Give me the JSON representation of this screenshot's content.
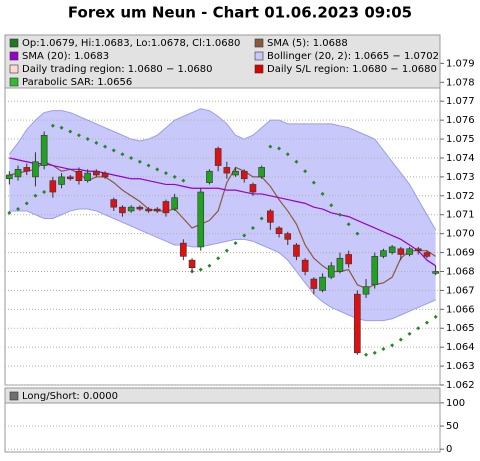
{
  "chart_data": [
    {
      "type": "candlestick",
      "title": "Forex um Neun - Chart 01.06.2023 09:05",
      "ylim": [
        1.062,
        1.0805
      ],
      "yticks": [
        1.062,
        1.063,
        1.064,
        1.065,
        1.066,
        1.067,
        1.068,
        1.069,
        {
          "value": 1.07,
          "label": "1.070"
        },
        1.071,
        1.072,
        1.073,
        1.074,
        1.075,
        1.076,
        1.077,
        1.078,
        1.079
      ],
      "grid": true,
      "series": [
        {
          "name": "Op:1.0679, Hi:1.0683, Lo:1.0678, Cl:1.0680",
          "color": "#227722",
          "up_color": "#22a022",
          "down_color": "#dd1111",
          "open": [
            1.0729,
            1.073,
            1.0735,
            1.073,
            1.0736,
            1.0728,
            1.0726,
            1.073,
            1.0733,
            1.0728,
            1.0733,
            1.0732,
            1.0718,
            1.0714,
            1.0712,
            1.0714,
            1.0713,
            1.0713,
            1.0717,
            1.0713,
            1.0695,
            1.0686,
            1.0693,
            1.0727,
            1.0745,
            1.0735,
            1.0731,
            1.0733,
            1.0726,
            1.073,
            1.0712,
            1.0703,
            1.07,
            1.0694,
            1.0686,
            1.0676,
            1.067,
            1.0677,
            1.068,
            1.0689,
            1.0668,
            1.0668,
            1.0673,
            1.0688,
            1.069,
            1.0692,
            1.0689,
            1.0692,
            1.069,
            1.0679
          ],
          "high": [
            1.0733,
            1.0736,
            1.0737,
            1.0743,
            1.0754,
            1.073,
            1.0732,
            1.0731,
            1.0735,
            1.0734,
            1.0734,
            1.0733,
            1.0719,
            1.0715,
            1.0715,
            1.0715,
            1.0714,
            1.0714,
            1.0718,
            1.0721,
            1.0697,
            1.0687,
            1.0724,
            1.0734,
            1.0746,
            1.0738,
            1.0735,
            1.0734,
            1.0727,
            1.0736,
            1.0713,
            1.0704,
            1.0701,
            1.0695,
            1.0687,
            1.0677,
            1.0679,
            1.0685,
            1.069,
            1.0691,
            1.067,
            1.0676,
            1.069,
            1.0692,
            1.0694,
            1.0693,
            1.0693,
            1.0693,
            1.0691,
            1.0683
          ],
          "low": [
            1.0726,
            1.0728,
            1.0731,
            1.0725,
            1.0734,
            1.0719,
            1.0724,
            1.0728,
            1.0726,
            1.0727,
            1.073,
            1.0729,
            1.0712,
            1.0709,
            1.0711,
            1.0712,
            1.0711,
            1.0711,
            1.0709,
            1.0712,
            1.0686,
            1.068,
            1.0691,
            1.0726,
            1.0733,
            1.0729,
            1.073,
            1.0727,
            1.072,
            1.0729,
            1.0702,
            1.0698,
            1.0694,
            1.0686,
            1.0678,
            1.0668,
            1.0669,
            1.0676,
            1.0679,
            1.0682,
            1.0636,
            1.0666,
            1.0671,
            1.0687,
            1.0689,
            1.0686,
            1.0688,
            1.0689,
            1.0687,
            1.0678
          ],
          "close": [
            1.0731,
            1.0734,
            1.0733,
            1.0738,
            1.0752,
            1.0722,
            1.073,
            1.0729,
            1.0728,
            1.0732,
            1.0731,
            1.073,
            1.0714,
            1.0711,
            1.0714,
            1.0713,
            1.0712,
            1.0712,
            1.0711,
            1.0719,
            1.0688,
            1.0682,
            1.0722,
            1.0733,
            1.0736,
            1.0732,
            1.0733,
            1.0729,
            1.0722,
            1.0735,
            1.0706,
            1.07,
            1.0697,
            1.0688,
            1.068,
            1.0671,
            1.0677,
            1.0683,
            1.0687,
            1.0684,
            1.0637,
            1.0672,
            1.0688,
            1.0691,
            1.0693,
            1.0689,
            1.0692,
            1.0691,
            1.0688,
            1.068
          ]
        },
        {
          "name": "SMA (5): 1.0688",
          "color": "#8b5a3c",
          "values": [
            1.0731,
            1.0732,
            1.0733,
            1.0734,
            1.0738,
            1.0736,
            1.0733,
            1.0734,
            1.0732,
            1.0728,
            1.073,
            1.073,
            1.0727,
            1.0723,
            1.072,
            1.0717,
            1.0713,
            1.0712,
            1.0712,
            1.0713,
            1.0708,
            1.0703,
            1.0705,
            1.0707,
            1.0712,
            1.0727,
            1.0735,
            1.0733,
            1.073,
            1.073,
            1.0725,
            1.0718,
            1.0712,
            1.0705,
            1.0694,
            1.0687,
            1.0683,
            1.068,
            1.068,
            1.0681,
            1.0673,
            1.0671,
            1.0673,
            1.0674,
            1.0677,
            1.0687,
            1.0691,
            1.0691,
            1.0691,
            1.0688
          ]
        },
        {
          "name": "SMA (20): 1.0683",
          "color": "#9900cc",
          "values": [
            1.074,
            1.0739,
            1.0738,
            1.0737,
            1.0737,
            1.0736,
            1.0735,
            1.0734,
            1.0734,
            1.0733,
            1.0733,
            1.0732,
            1.0731,
            1.073,
            1.0729,
            1.0729,
            1.0728,
            1.0727,
            1.0726,
            1.0726,
            1.0725,
            1.0724,
            1.0724,
            1.0724,
            1.0724,
            1.0723,
            1.0723,
            1.0722,
            1.0721,
            1.0721,
            1.072,
            1.0719,
            1.0718,
            1.0717,
            1.0716,
            1.0714,
            1.0713,
            1.0711,
            1.071,
            1.0709,
            1.0707,
            1.0705,
            1.0703,
            1.0701,
            1.0699,
            1.0697,
            1.0694,
            1.0691,
            1.0686,
            1.0683
          ]
        },
        {
          "name": "Bollinger (20, 2): 1.0665 − 1.0702",
          "color": "#c8c8fa",
          "edge_color": "#9c9cee",
          "upper": [
            1.0742,
            1.0748,
            1.0755,
            1.076,
            1.0764,
            1.0765,
            1.0765,
            1.0764,
            1.0762,
            1.076,
            1.0758,
            1.0756,
            1.0754,
            1.0752,
            1.075,
            1.0749,
            1.075,
            1.0752,
            1.0756,
            1.076,
            1.0762,
            1.0764,
            1.0766,
            1.0765,
            1.0762,
            1.0758,
            1.0752,
            1.075,
            1.0752,
            1.0756,
            1.076,
            1.076,
            1.0758,
            1.0758,
            1.0758,
            1.0758,
            1.0758,
            1.0758,
            1.0757,
            1.0756,
            1.0754,
            1.0752,
            1.075,
            1.0744,
            1.0738,
            1.0732,
            1.0726,
            1.0718,
            1.071,
            1.0702
          ],
          "lower": [
            1.0712,
            1.0712,
            1.0712,
            1.071,
            1.0708,
            1.0708,
            1.071,
            1.0712,
            1.0713,
            1.0713,
            1.0712,
            1.071,
            1.0708,
            1.0706,
            1.0704,
            1.0702,
            1.07,
            1.0698,
            1.0696,
            1.0694,
            1.0694,
            1.0693,
            1.0693,
            1.0694,
            1.0695,
            1.0696,
            1.0697,
            1.0697,
            1.0696,
            1.0694,
            1.0692,
            1.069,
            1.0686,
            1.068,
            1.0674,
            1.0668,
            1.0664,
            1.0661,
            1.0659,
            1.0657,
            1.0655,
            1.0654,
            1.0654,
            1.0654,
            1.0655,
            1.0657,
            1.0659,
            1.0661,
            1.0663,
            1.0665
          ]
        },
        {
          "name": "Daily trading region: 1.0680 − 1.0680",
          "color": "#ffd8d8"
        },
        {
          "name": "Daily S/L region: 1.0680 − 1.0680",
          "color": "#dd0000"
        },
        {
          "name": "Parabolic SAR: 1.0656",
          "color": "#33bb33",
          "dot_color": "#228822",
          "values": [
            1.0711,
            1.0713,
            1.0716,
            1.072,
            1.0722,
            1.0757,
            1.0756,
            1.0754,
            1.0752,
            1.075,
            1.0748,
            1.0746,
            1.0744,
            1.0742,
            1.074,
            1.0738,
            1.0736,
            1.0734,
            1.0732,
            1.073,
            1.0728,
            1.068,
            1.0681,
            1.0683,
            1.0687,
            1.0691,
            1.0695,
            1.0699,
            1.0703,
            1.0708,
            1.0746,
            1.0745,
            1.0742,
            1.0738,
            1.0733,
            1.0727,
            1.0721,
            1.0715,
            1.071,
            1.0705,
            1.07,
            1.0636,
            1.0637,
            1.0639,
            1.0641,
            1.0644,
            1.0647,
            1.065,
            1.0653,
            1.0656
          ]
        }
      ]
    },
    {
      "type": "line",
      "ylim": [
        -6,
        132
      ],
      "yticks": [
        0,
        50,
        100
      ],
      "grid": true,
      "series": [
        {
          "name": "Long/Short: 0.0000",
          "color": "#707070"
        }
      ]
    }
  ]
}
